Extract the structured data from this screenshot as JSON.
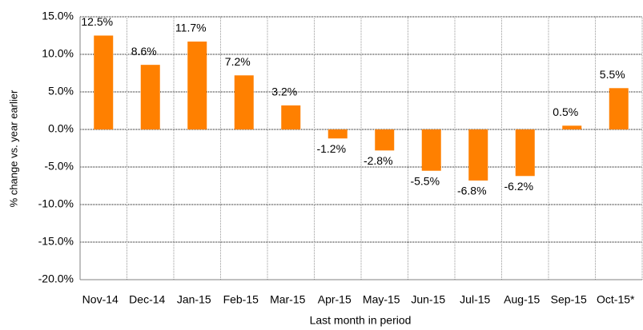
{
  "chart_data": {
    "type": "bar",
    "categories": [
      "Nov-14",
      "Dec-14",
      "Jan-15",
      "Feb-15",
      "Mar-15",
      "Apr-15",
      "May-15",
      "Jun-15",
      "Jul-15",
      "Aug-15",
      "Sep-15",
      "Oct-15*"
    ],
    "values": [
      12.5,
      8.6,
      11.7,
      7.2,
      3.2,
      -1.2,
      -2.8,
      -5.5,
      -6.8,
      -6.2,
      0.5,
      5.5
    ],
    "value_labels": [
      "12.5%",
      "8.6%",
      "11.7%",
      "7.2%",
      "3.2%",
      "-1.2%",
      "-2.8%",
      "-5.5%",
      "-6.8%",
      "-6.2%",
      "0.5%",
      "5.5%"
    ],
    "color": "#ff8000",
    "x_label": "Last month in period",
    "y_label": "% change vs. year earlier",
    "ylim": [
      -20,
      15
    ],
    "yticks": [
      {
        "value": -20,
        "label": "-20.0%"
      },
      {
        "value": -15,
        "label": "-15.0%"
      },
      {
        "value": -10,
        "label": "-10.0%"
      },
      {
        "value": -5,
        "label": "-5.0%"
      },
      {
        "value": 0,
        "label": "0.0%"
      },
      {
        "value": 5,
        "label": "5.0%"
      },
      {
        "value": 10,
        "label": "10.0%"
      },
      {
        "value": 15,
        "label": "15.0%"
      }
    ],
    "grid": true
  }
}
